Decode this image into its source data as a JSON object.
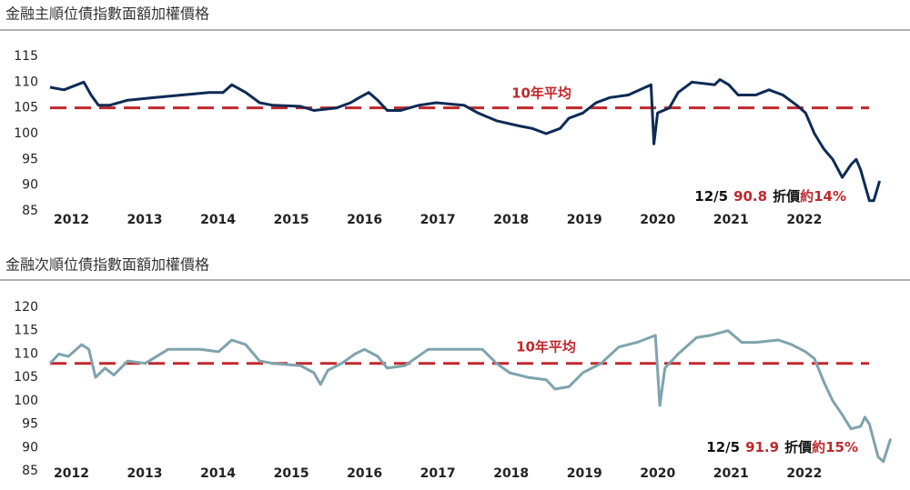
{
  "chart_data": [
    {
      "type": "line",
      "title": "金融主順位債指數面額加權價格",
      "x": [
        2012.0,
        2012.19,
        2012.46,
        2012.56,
        2012.66,
        2012.81,
        2013.06,
        2013.43,
        2013.8,
        2014.17,
        2014.36,
        2014.48,
        2014.67,
        2014.86,
        2015.04,
        2015.42,
        2015.6,
        2015.91,
        2016.1,
        2016.22,
        2016.35,
        2016.47,
        2016.6,
        2016.78,
        2017.03,
        2017.27,
        2017.65,
        2017.84,
        2018.09,
        2018.4,
        2018.58,
        2018.77,
        2018.96,
        2019.08,
        2019.27,
        2019.45,
        2019.64,
        2019.89,
        2020.2,
        2020.24,
        2020.29,
        2020.45,
        2020.57,
        2020.76,
        2021.07,
        2021.14,
        2021.26,
        2021.39,
        2021.63,
        2021.81,
        2022.0,
        2022.19,
        2022.31,
        2022.43,
        2022.56,
        2022.68,
        2022.81,
        2022.93,
        2023.0,
        2023.06,
        2023.18,
        2023.24,
        2023.32
      ],
      "series": [
        {
          "color": "#0d2b55",
          "values": [
            109,
            108.5,
            110,
            107.5,
            105.5,
            105.5,
            106.5,
            107,
            107.5,
            108,
            108,
            109.5,
            108,
            106,
            105.5,
            105.3,
            104.5,
            105,
            106,
            107,
            108,
            106.5,
            104.5,
            104.5,
            105.5,
            106,
            105.5,
            104,
            102.5,
            101.5,
            101,
            100,
            101,
            103,
            104,
            106,
            107,
            107.5,
            109.5,
            98,
            104,
            105,
            108,
            110,
            109.5,
            110.5,
            109.5,
            107.5,
            107.5,
            108.5,
            107.5,
            105.5,
            104,
            100,
            97,
            95,
            91.5,
            94,
            95,
            93,
            87,
            87,
            90.8
          ]
        }
      ],
      "xlim": [
        2011.95,
        2023.61
      ],
      "xticks": [
        2012,
        2013,
        2014,
        2015,
        2016,
        2017,
        2018,
        2019,
        2020,
        2021,
        2022
      ],
      "ylim": [
        85,
        115
      ],
      "yticks": [
        85,
        90,
        95,
        100,
        105,
        110,
        115
      ],
      "mean": 105,
      "mean_label": "10年平均",
      "mean_color": "#c0282d",
      "annotation": {
        "date": "12/5",
        "value": 90.8,
        "text": "折價",
        "discount": "約14%"
      }
    },
    {
      "type": "line",
      "title": "金融次順位債指數面額加權價格",
      "x": [
        2012.0,
        2012.12,
        2012.25,
        2012.43,
        2012.53,
        2012.62,
        2012.75,
        2012.87,
        2013.06,
        2013.3,
        2013.61,
        2014.05,
        2014.3,
        2014.48,
        2014.67,
        2014.86,
        2015.04,
        2015.42,
        2015.6,
        2015.69,
        2015.79,
        2015.98,
        2016.16,
        2016.29,
        2016.47,
        2016.6,
        2016.84,
        2017.16,
        2017.4,
        2017.65,
        2017.9,
        2018.09,
        2018.27,
        2018.52,
        2018.77,
        2018.89,
        2019.08,
        2019.27,
        2019.52,
        2019.76,
        2020.01,
        2020.26,
        2020.32,
        2020.39,
        2020.57,
        2020.82,
        2021.01,
        2021.25,
        2021.44,
        2021.63,
        2021.94,
        2022.12,
        2022.31,
        2022.43,
        2022.56,
        2022.68,
        2022.81,
        2022.93,
        2023.06,
        2023.12,
        2023.18,
        2023.3,
        2023.37,
        2023.47
      ],
      "series": [
        {
          "color": "#7fa3ad",
          "values": [
            108,
            110,
            109.5,
            112,
            111,
            105,
            107,
            105.5,
            108.5,
            108,
            111,
            111,
            110.5,
            113,
            112,
            108.5,
            108,
            107.5,
            106,
            103.5,
            106.5,
            108,
            110,
            111,
            109.5,
            107,
            107.5,
            111,
            111,
            111,
            111,
            108,
            106,
            105,
            104.5,
            102.5,
            103,
            106,
            108,
            111.5,
            112.5,
            114,
            99,
            107,
            110,
            113.5,
            114,
            115,
            112.5,
            112.5,
            113,
            112,
            110.5,
            109,
            104,
            100,
            97,
            94,
            94.5,
            96.5,
            95,
            88,
            87,
            91.9
          ]
        }
      ],
      "xlim": [
        2011.95,
        2023.61
      ],
      "xticks": [
        2012,
        2013,
        2014,
        2015,
        2016,
        2017,
        2018,
        2019,
        2020,
        2021,
        2022
      ],
      "ylim": [
        85,
        120
      ],
      "yticks": [
        85,
        90,
        95,
        100,
        105,
        110,
        115,
        120
      ],
      "mean": 108,
      "mean_label": "10年平均",
      "mean_color": "#c0282d",
      "annotation": {
        "date": "12/5",
        "value": 91.9,
        "text": "折價",
        "discount": "約15%"
      }
    }
  ]
}
